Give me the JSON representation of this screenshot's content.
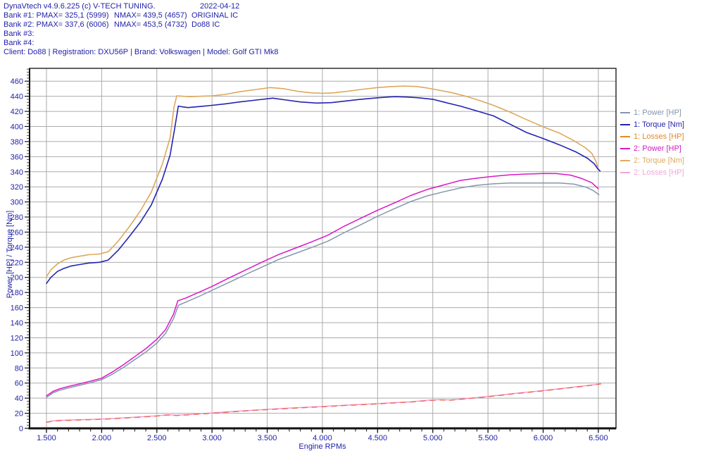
{
  "header": {
    "text_color": "#2222aa",
    "lines": [
      {
        "segments": [
          {
            "text": "DynaVtech v4.9.6.225 (c) V-TECH TUNING.",
            "x": 5
          },
          {
            "text": "2022-04-12",
            "x": 284
          }
        ]
      },
      {
        "segments": [
          {
            "text": "Bank #1: PMAX= 325,1 (5999)",
            "x": 5
          },
          {
            "text": "NMAX= 439,5 (4657)",
            "x": 162
          },
          {
            "text": "ORIGINAL IC",
            "x": 272
          }
        ]
      },
      {
        "segments": [
          {
            "text": "Bank #2: PMAX= 337,6 (6006)",
            "x": 5
          },
          {
            "text": "NMAX= 453,5 (4732)",
            "x": 162
          },
          {
            "text": "Do88 IC",
            "x": 272
          }
        ]
      },
      {
        "segments": [
          {
            "text": "Bank #3:",
            "x": 5
          }
        ]
      },
      {
        "segments": [
          {
            "text": "Bank #4:",
            "x": 5
          }
        ]
      },
      {
        "segments": [
          {
            "text": "Client: Do88 | Registration: DXU56P | Brand: Volkswagen | Model: Golf GTI Mk8",
            "x": 5
          }
        ]
      }
    ]
  },
  "chart_data": {
    "type": "line",
    "xlabel": "Engine RPMs",
    "ylabel": "Power [HP] / Torque [Nm]",
    "xlim": [
      1347,
      6660
    ],
    "ylim": [
      0,
      477
    ],
    "grid": true,
    "legend_position": "right",
    "axis_text_color": "#2222aa",
    "grid_color": "#ababab",
    "x_ticks": [
      {
        "value": 1500,
        "label": "1.500"
      },
      {
        "value": 2000,
        "label": "2.000"
      },
      {
        "value": 2500,
        "label": "2.500"
      },
      {
        "value": 3000,
        "label": "3.000"
      },
      {
        "value": 3500,
        "label": "3.500"
      },
      {
        "value": 4000,
        "label": "4.000"
      },
      {
        "value": 4500,
        "label": "4.500"
      },
      {
        "value": 5000,
        "label": "5.000"
      },
      {
        "value": 5500,
        "label": "5.500"
      },
      {
        "value": 6000,
        "label": "6.000"
      },
      {
        "value": 6500,
        "label": "6.500"
      }
    ],
    "x_minor_step": 100,
    "y_ticks": {
      "min": 0,
      "max": 460,
      "step": 20,
      "minor_step": 4
    },
    "series": [
      {
        "name": "2: Losses [HP]",
        "color": "#f493cf",
        "legend_color": "#f2a6d8",
        "width": 1.4,
        "dash": null,
        "points": [
          [
            1500,
            8.4
          ],
          [
            1560,
            9.9
          ],
          [
            1620,
            10.6
          ],
          [
            1750,
            11.2
          ],
          [
            1900,
            11.9
          ],
          [
            2050,
            12.7
          ],
          [
            2200,
            13.9
          ],
          [
            2350,
            15.2
          ],
          [
            2500,
            16.6
          ],
          [
            2600,
            18.0
          ],
          [
            2680,
            17.4
          ],
          [
            2800,
            18.4
          ],
          [
            3000,
            20.4
          ],
          [
            3200,
            22.4
          ],
          [
            3400,
            24.4
          ],
          [
            3600,
            26.0
          ],
          [
            3800,
            27.6
          ],
          [
            4000,
            29.0
          ],
          [
            4200,
            30.6
          ],
          [
            4400,
            32.0
          ],
          [
            4600,
            33.6
          ],
          [
            4800,
            35.2
          ],
          [
            4960,
            37.2
          ],
          [
            5060,
            38.0
          ],
          [
            5160,
            37.6
          ],
          [
            5300,
            39.4
          ],
          [
            5450,
            41.6
          ],
          [
            5600,
            43.9
          ],
          [
            5750,
            46.4
          ],
          [
            5900,
            48.6
          ],
          [
            6050,
            50.9
          ],
          [
            6200,
            53.4
          ],
          [
            6350,
            55.9
          ],
          [
            6450,
            57.6
          ],
          [
            6520,
            59.2
          ]
        ]
      },
      {
        "name": "1: Losses [HP]",
        "color": "#ee6b57",
        "legend_color": "#e28a2b",
        "width": 1.4,
        "dash": "7 7",
        "points": [
          [
            1500,
            8.0
          ],
          [
            1560,
            9.5
          ],
          [
            1620,
            10.2
          ],
          [
            1750,
            10.8
          ],
          [
            1900,
            11.5
          ],
          [
            2050,
            12.3
          ],
          [
            2200,
            13.5
          ],
          [
            2350,
            14.8
          ],
          [
            2500,
            16.2
          ],
          [
            2600,
            17.6
          ],
          [
            2680,
            17.0
          ],
          [
            2800,
            18.0
          ],
          [
            3000,
            20.0
          ],
          [
            3200,
            22.0
          ],
          [
            3400,
            24.0
          ],
          [
            3600,
            25.6
          ],
          [
            3800,
            27.2
          ],
          [
            4000,
            28.6
          ],
          [
            4200,
            30.2
          ],
          [
            4400,
            31.6
          ],
          [
            4600,
            33.2
          ],
          [
            4800,
            34.8
          ],
          [
            4960,
            36.8
          ],
          [
            5060,
            37.6
          ],
          [
            5160,
            37.2
          ],
          [
            5300,
            39.0
          ],
          [
            5450,
            41.2
          ],
          [
            5600,
            43.5
          ],
          [
            5750,
            46.0
          ],
          [
            5900,
            48.2
          ],
          [
            6050,
            50.5
          ],
          [
            6200,
            53.0
          ],
          [
            6350,
            55.5
          ],
          [
            6450,
            57.2
          ],
          [
            6520,
            58.8
          ]
        ]
      },
      {
        "name": "1: Power [HP]",
        "color": "#8496ac",
        "legend_color": "#8496ac",
        "width": 1.5,
        "dash": null,
        "points": [
          [
            1500,
            41
          ],
          [
            1560,
            47
          ],
          [
            1620,
            50.5
          ],
          [
            1700,
            53.5
          ],
          [
            1800,
            57
          ],
          [
            1900,
            60.5
          ],
          [
            2000,
            64.5
          ],
          [
            2100,
            72
          ],
          [
            2200,
            81
          ],
          [
            2300,
            91
          ],
          [
            2400,
            101
          ],
          [
            2500,
            113
          ],
          [
            2580,
            126
          ],
          [
            2650,
            145
          ],
          [
            2695,
            163
          ],
          [
            2760,
            167
          ],
          [
            2900,
            176
          ],
          [
            3000,
            183
          ],
          [
            3150,
            193
          ],
          [
            3300,
            203.5
          ],
          [
            3450,
            213.5
          ],
          [
            3600,
            223.5
          ],
          [
            3750,
            231.5
          ],
          [
            3900,
            239.5
          ],
          [
            4050,
            248
          ],
          [
            4200,
            259.5
          ],
          [
            4350,
            270
          ],
          [
            4500,
            281
          ],
          [
            4650,
            291
          ],
          [
            4800,
            300.5
          ],
          [
            4950,
            308
          ],
          [
            5100,
            313.5
          ],
          [
            5250,
            318.5
          ],
          [
            5400,
            322
          ],
          [
            5550,
            324
          ],
          [
            5700,
            325
          ],
          [
            5850,
            325
          ],
          [
            5999,
            325.1
          ],
          [
            6150,
            325
          ],
          [
            6280,
            323.5
          ],
          [
            6390,
            319.5
          ],
          [
            6460,
            314.5
          ],
          [
            6505,
            309.5
          ]
        ]
      },
      {
        "name": "2: Power [HP]",
        "color": "#d918c6",
        "legend_color": "#d918c6",
        "width": 1.5,
        "dash": null,
        "points": [
          [
            1500,
            43
          ],
          [
            1560,
            49
          ],
          [
            1620,
            52.5
          ],
          [
            1700,
            55.5
          ],
          [
            1800,
            59
          ],
          [
            1900,
            62.5
          ],
          [
            2000,
            66.5
          ],
          [
            2100,
            75
          ],
          [
            2200,
            84.5
          ],
          [
            2300,
            95
          ],
          [
            2400,
            105.5
          ],
          [
            2500,
            118
          ],
          [
            2580,
            131
          ],
          [
            2650,
            151
          ],
          [
            2690,
            169
          ],
          [
            2760,
            172.5
          ],
          [
            2900,
            181.5
          ],
          [
            3000,
            188
          ],
          [
            3150,
            199
          ],
          [
            3300,
            209.5
          ],
          [
            3450,
            220
          ],
          [
            3600,
            230
          ],
          [
            3750,
            238.5
          ],
          [
            3900,
            247
          ],
          [
            4050,
            256
          ],
          [
            4200,
            268
          ],
          [
            4350,
            278.5
          ],
          [
            4500,
            289
          ],
          [
            4650,
            298.5
          ],
          [
            4800,
            308.5
          ],
          [
            4950,
            316.5
          ],
          [
            5100,
            322.5
          ],
          [
            5250,
            328.5
          ],
          [
            5400,
            331.5
          ],
          [
            5550,
            334
          ],
          [
            5700,
            336
          ],
          [
            5850,
            337
          ],
          [
            6006,
            337.6
          ],
          [
            6120,
            337.5
          ],
          [
            6250,
            335.5
          ],
          [
            6350,
            331
          ],
          [
            6440,
            325.5
          ],
          [
            6500,
            317.5
          ]
        ]
      },
      {
        "name": "1: Torque [Nm]",
        "color": "#2323b4",
        "legend_color": "#2323b4",
        "width": 1.6,
        "dash": null,
        "points": [
          [
            1500,
            192
          ],
          [
            1540,
            200
          ],
          [
            1600,
            208
          ],
          [
            1660,
            212
          ],
          [
            1720,
            215
          ],
          [
            1800,
            217
          ],
          [
            1880,
            219
          ],
          [
            1980,
            220
          ],
          [
            2060,
            223
          ],
          [
            2150,
            236
          ],
          [
            2250,
            254
          ],
          [
            2350,
            273
          ],
          [
            2450,
            296
          ],
          [
            2550,
            330
          ],
          [
            2620,
            362
          ],
          [
            2665,
            400
          ],
          [
            2695,
            427
          ],
          [
            2730,
            426
          ],
          [
            2780,
            425
          ],
          [
            2900,
            426.5
          ],
          [
            3000,
            428
          ],
          [
            3120,
            430
          ],
          [
            3250,
            432.5
          ],
          [
            3400,
            435
          ],
          [
            3550,
            437.5
          ],
          [
            3650,
            435.5
          ],
          [
            3800,
            432.5
          ],
          [
            3950,
            431
          ],
          [
            4080,
            431.5
          ],
          [
            4200,
            433.5
          ],
          [
            4350,
            436
          ],
          [
            4500,
            438
          ],
          [
            4600,
            439
          ],
          [
            4657,
            439.5
          ],
          [
            4760,
            439
          ],
          [
            4870,
            438
          ],
          [
            5000,
            436
          ],
          [
            5120,
            431.5
          ],
          [
            5250,
            427
          ],
          [
            5400,
            420.5
          ],
          [
            5550,
            414
          ],
          [
            5700,
            403
          ],
          [
            5850,
            392
          ],
          [
            6000,
            384
          ],
          [
            6150,
            375.5
          ],
          [
            6300,
            366
          ],
          [
            6400,
            358
          ],
          [
            6460,
            351
          ],
          [
            6495,
            344
          ],
          [
            6515,
            341
          ]
        ]
      },
      {
        "name": "2: Torque [Nm]",
        "color": "#dda85c",
        "legend_color": "#dcab62",
        "width": 1.6,
        "dash": null,
        "points": [
          [
            1500,
            201
          ],
          [
            1540,
            210
          ],
          [
            1600,
            218
          ],
          [
            1660,
            223
          ],
          [
            1720,
            226
          ],
          [
            1800,
            228
          ],
          [
            1880,
            230
          ],
          [
            1980,
            231
          ],
          [
            2060,
            234
          ],
          [
            2150,
            248
          ],
          [
            2250,
            267
          ],
          [
            2350,
            288
          ],
          [
            2450,
            313
          ],
          [
            2550,
            350
          ],
          [
            2620,
            385
          ],
          [
            2655,
            425
          ],
          [
            2680,
            440.5
          ],
          [
            2730,
            440
          ],
          [
            2800,
            439.5
          ],
          [
            2900,
            440
          ],
          [
            3000,
            440.5
          ],
          [
            3120,
            442.5
          ],
          [
            3250,
            446
          ],
          [
            3400,
            449
          ],
          [
            3530,
            451.5
          ],
          [
            3650,
            450
          ],
          [
            3780,
            446.5
          ],
          [
            3900,
            444.5
          ],
          [
            4000,
            444
          ],
          [
            4100,
            444.5
          ],
          [
            4220,
            446.5
          ],
          [
            4350,
            449
          ],
          [
            4500,
            451.5
          ],
          [
            4620,
            452.8
          ],
          [
            4732,
            453.5
          ],
          [
            4850,
            453
          ],
          [
            4950,
            451
          ],
          [
            5060,
            448
          ],
          [
            5180,
            444.5
          ],
          [
            5300,
            440
          ],
          [
            5420,
            434.5
          ],
          [
            5550,
            428
          ],
          [
            5700,
            419
          ],
          [
            5850,
            409
          ],
          [
            6000,
            399.5
          ],
          [
            6150,
            391
          ],
          [
            6280,
            381
          ],
          [
            6380,
            372
          ],
          [
            6440,
            364.5
          ],
          [
            6475,
            355
          ],
          [
            6492,
            347
          ]
        ]
      }
    ],
    "legend_order": [
      "1: Power [HP]",
      "1: Torque [Nm]",
      "1: Losses [HP]",
      "2: Power [HP]",
      "2: Torque [Nm]",
      "2: Losses [HP]"
    ]
  }
}
